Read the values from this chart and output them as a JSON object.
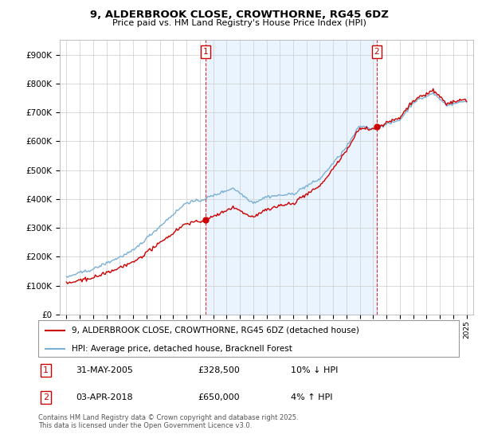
{
  "title": "9, ALDERBROOK CLOSE, CROWTHORNE, RG45 6DZ",
  "subtitle": "Price paid vs. HM Land Registry's House Price Index (HPI)",
  "sale1": {
    "date_num": 2005.417,
    "price": 328500,
    "label": "1",
    "hpi_diff": "10% ↓ HPI",
    "date_str": "31-MAY-2005"
  },
  "sale2": {
    "date_num": 2018.25,
    "price": 650000,
    "label": "2",
    "hpi_diff": "4% ↑ HPI",
    "date_str": "03-APR-2018"
  },
  "legend1": "9, ALDERBROOK CLOSE, CROWTHORNE, RG45 6DZ (detached house)",
  "legend2": "HPI: Average price, detached house, Bracknell Forest",
  "footnote": "Contains HM Land Registry data © Crown copyright and database right 2025.\nThis data is licensed under the Open Government Licence v3.0.",
  "sale_color": "#cc0000",
  "hpi_color": "#7ab0d4",
  "shade_color": "#ddeeff",
  "vline_color": "#cc0000",
  "ylim": [
    0,
    950000
  ],
  "yticks": [
    0,
    100000,
    200000,
    300000,
    400000,
    500000,
    600000,
    700000,
    800000,
    900000
  ],
  "background_color": "#ffffff",
  "grid_color": "#cccccc",
  "xlim_left": 1994.5,
  "xlim_right": 2025.5
}
